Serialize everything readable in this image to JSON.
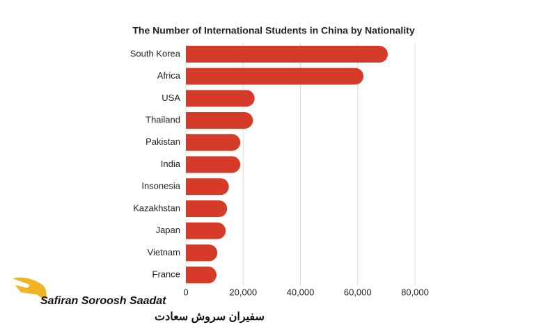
{
  "chart_data": {
    "type": "barh",
    "title": "The Number of International Students in China by Nationality",
    "categories": [
      "South Korea",
      "Africa",
      "USA",
      "Thailand",
      "Pakistan",
      "India",
      "Insonesia",
      "Kazakhstan",
      "Japan",
      "Vietnam",
      "France"
    ],
    "values": [
      70500,
      62000,
      24000,
      23400,
      19000,
      19000,
      15000,
      14400,
      13900,
      11000,
      10700
    ],
    "color": "#d63a28",
    "xlim": [
      0,
      80000
    ],
    "xticks": [
      0,
      {
        "value": 20000,
        "label": "20,000"
      },
      {
        "value": 40000,
        "label": "40,000"
      },
      {
        "value": 60000,
        "label": "60,000"
      },
      {
        "value": 80000,
        "label": "80,000"
      }
    ],
    "grid": true
  },
  "logo": {
    "name": "Safiran Soroosh Saadat",
    "name_fa": "سفیران سروش سعادت"
  }
}
